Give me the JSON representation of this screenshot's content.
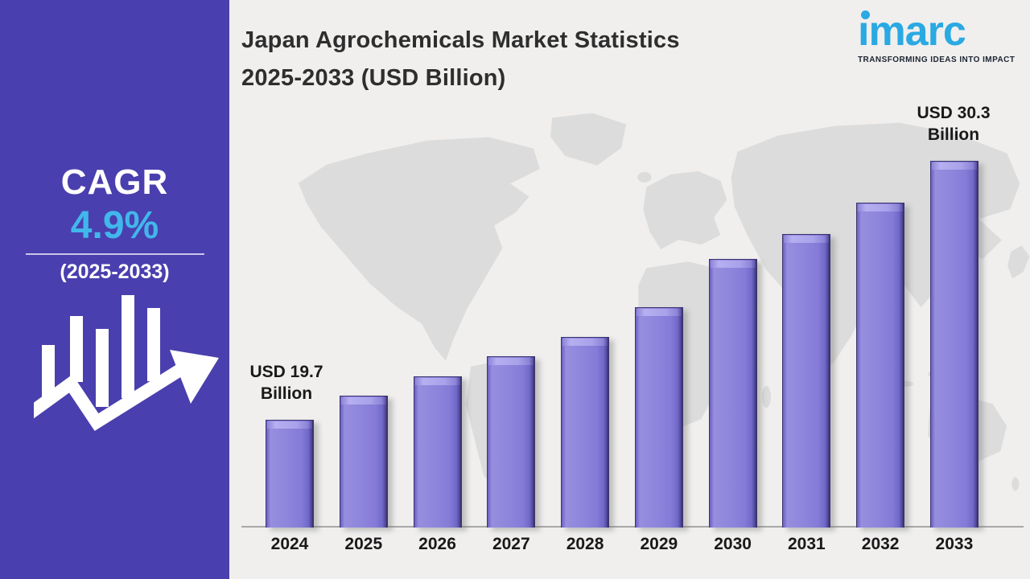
{
  "header": {
    "title_line1": "Japan Agrochemicals Market Statistics",
    "title_line2": "2025-2033 (USD Billion)"
  },
  "logo": {
    "brand": "imarc",
    "tagline": "TRANSFORMING IDEAS INTO IMPACT",
    "brand_color": "#2aa9e2"
  },
  "sidebar": {
    "cagr_label": "CAGR",
    "cagr_value": "4.9%",
    "cagr_period": "(2025-2033)",
    "background_color": "#4a3fae",
    "accent_color": "#41b7eb"
  },
  "chart_data": {
    "type": "bar",
    "title": "Japan Agrochemicals Market Statistics 2025-2033 (USD Billion)",
    "unit": "USD Billion",
    "categories": [
      "2024",
      "2025",
      "2026",
      "2027",
      "2028",
      "2029",
      "2030",
      "2031",
      "2032",
      "2033"
    ],
    "values": [
      19.7,
      20.7,
      21.5,
      22.3,
      23.1,
      24.3,
      26.3,
      27.3,
      28.6,
      30.3
    ],
    "labeled_points": {
      "2024": "USD 19.7 Billion",
      "2033": "USD 30.3 Billion"
    },
    "callouts": {
      "start": {
        "line1": "USD 19.7",
        "line2": "Billion"
      },
      "end": {
        "line1": "USD 30.3",
        "line2": "Billion"
      }
    },
    "bar_color": "#8177d6",
    "grid": false,
    "legend": false,
    "y_axis_shown": false,
    "baseline_value": 15.3,
    "ylim": [
      15.3,
      31
    ],
    "background": "light gray world map silhouette"
  }
}
